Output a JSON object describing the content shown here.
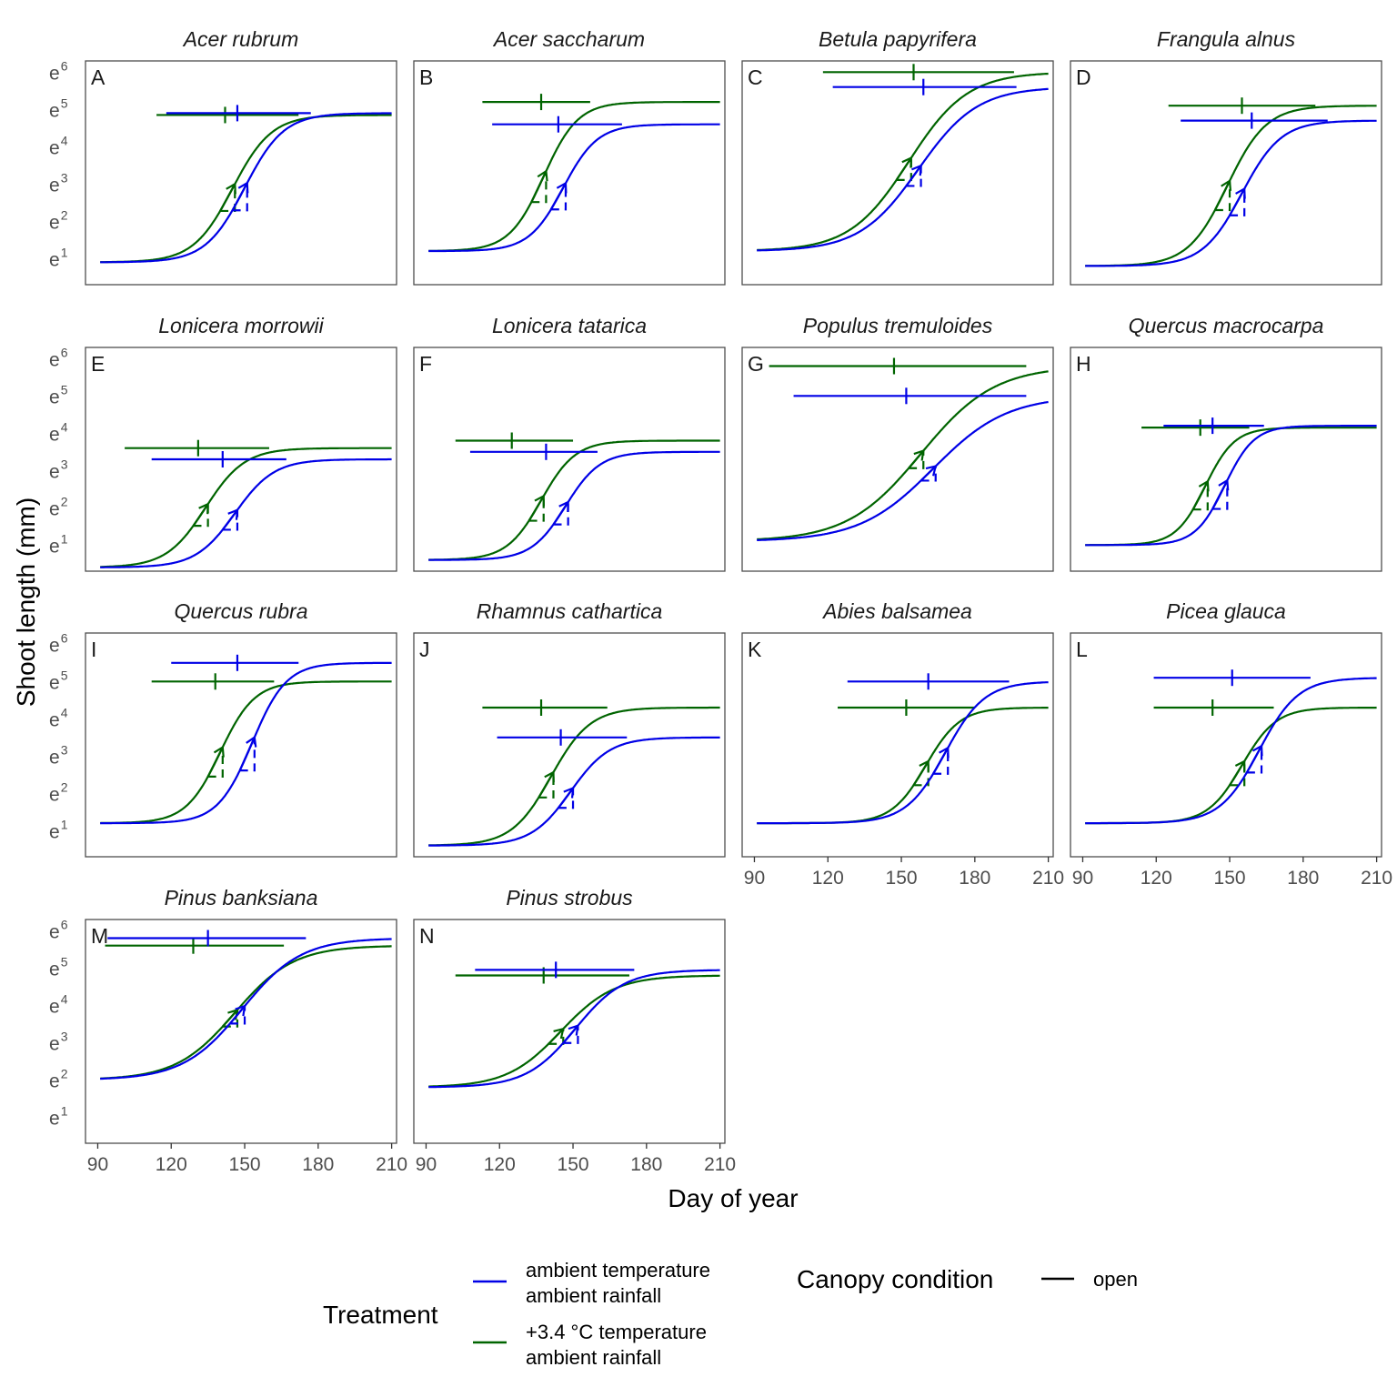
{
  "chart_data": {
    "type": "line",
    "ylabel": "Shoot length (mm)",
    "xlabel": "Day of year",
    "x_ticks": [
      90,
      120,
      150,
      180,
      210
    ],
    "x_range": [
      85,
      212
    ],
    "y_scale": "log (natural)",
    "y_ticks": [
      {
        "base": "e",
        "exp": "1"
      },
      {
        "base": "e",
        "exp": "2"
      },
      {
        "base": "e",
        "exp": "3"
      },
      {
        "base": "e",
        "exp": "4"
      },
      {
        "base": "e",
        "exp": "5"
      },
      {
        "base": "e",
        "exp": "6"
      }
    ],
    "y_range_ln": [
      0.3,
      6.3
    ],
    "colors": {
      "ambient": "#0000e6",
      "warmed": "#006400"
    },
    "legend": {
      "treatment_title": "Treatment",
      "ambient_label_1": "ambient temperature",
      "ambient_label_2": "ambient rainfall",
      "warmed_label_1": "+3.4 °C temperature",
      "warmed_label_2": "ambient rainfall",
      "canopy_title": "Canopy condition",
      "canopy_label": "open"
    },
    "panels": [
      {
        "letter": "A",
        "species": "Acer rubrum",
        "ambient": {
          "x_start": 91,
          "x_end": 210,
          "ln_y0": 0.9,
          "ln_y1": 4.9,
          "midpoint": 150,
          "scale": 8,
          "plateau_x": 147,
          "plateau_range": [
            118,
            177
          ]
        },
        "warmed": {
          "x_start": 91,
          "x_end": 210,
          "ln_y0": 0.9,
          "ln_y1": 4.85,
          "midpoint": 145,
          "scale": 8,
          "plateau_x": 142,
          "plateau_range": [
            114,
            172
          ]
        }
      },
      {
        "letter": "B",
        "species": "Acer saccharum",
        "ambient": {
          "x_start": 91,
          "x_end": 210,
          "ln_y0": 1.2,
          "ln_y1": 4.6,
          "midpoint": 146,
          "scale": 7,
          "plateau_x": 144,
          "plateau_range": [
            117,
            170
          ]
        },
        "warmed": {
          "x_start": 91,
          "x_end": 210,
          "ln_y0": 1.2,
          "ln_y1": 5.2,
          "midpoint": 138,
          "scale": 7,
          "plateau_x": 137,
          "plateau_range": [
            113,
            157
          ]
        }
      },
      {
        "letter": "C",
        "species": "Betula papyrifera",
        "ambient": {
          "x_start": 91,
          "x_end": 210,
          "ln_y0": 1.2,
          "ln_y1": 5.6,
          "midpoint": 157,
          "scale": 12,
          "plateau_x": 159,
          "plateau_range": [
            122,
            197
          ]
        },
        "warmed": {
          "x_start": 91,
          "x_end": 210,
          "ln_y0": 1.2,
          "ln_y1": 6.0,
          "midpoint": 153,
          "scale": 12,
          "plateau_x": 155,
          "plateau_range": [
            118,
            196
          ]
        }
      },
      {
        "letter": "D",
        "species": "Frangula alnus",
        "ambient": {
          "x_start": 91,
          "x_end": 210,
          "ln_y0": 0.8,
          "ln_y1": 4.7,
          "midpoint": 155,
          "scale": 8,
          "plateau_x": 159,
          "plateau_range": [
            130,
            190
          ]
        },
        "warmed": {
          "x_start": 91,
          "x_end": 210,
          "ln_y0": 0.8,
          "ln_y1": 5.1,
          "midpoint": 149,
          "scale": 8,
          "plateau_x": 155,
          "plateau_range": [
            125,
            185
          ]
        }
      },
      {
        "letter": "E",
        "species": "Lonicera morrowii",
        "ambient": {
          "x_start": 91,
          "x_end": 210,
          "ln_y0": 0.4,
          "ln_y1": 3.3,
          "midpoint": 146,
          "scale": 8,
          "plateau_x": 141,
          "plateau_range": [
            112,
            167
          ]
        },
        "warmed": {
          "x_start": 91,
          "x_end": 210,
          "ln_y0": 0.4,
          "ln_y1": 3.6,
          "midpoint": 134,
          "scale": 8,
          "plateau_x": 131,
          "plateau_range": [
            101,
            160
          ]
        }
      },
      {
        "letter": "F",
        "species": "Lonicera tatarica",
        "ambient": {
          "x_start": 91,
          "x_end": 210,
          "ln_y0": 0.6,
          "ln_y1": 3.5,
          "midpoint": 147,
          "scale": 7,
          "plateau_x": 139,
          "plateau_range": [
            108,
            160
          ]
        },
        "warmed": {
          "x_start": 91,
          "x_end": 210,
          "ln_y0": 0.6,
          "ln_y1": 3.8,
          "midpoint": 137,
          "scale": 7,
          "plateau_x": 125,
          "plateau_range": [
            102,
            150
          ]
        }
      },
      {
        "letter": "G",
        "species": "Populus tremuloides",
        "ambient": {
          "x_start": 91,
          "x_end": 210,
          "ln_y0": 1.1,
          "ln_y1": 5.0,
          "midpoint": 163,
          "scale": 15,
          "plateau_x": 152,
          "plateau_range": [
            106,
            201
          ]
        },
        "warmed": {
          "x_start": 91,
          "x_end": 210,
          "ln_y0": 1.1,
          "ln_y1": 5.8,
          "midpoint": 158,
          "scale": 15,
          "plateau_x": 147,
          "plateau_range": [
            96,
            201
          ]
        }
      },
      {
        "letter": "H",
        "species": "Quercus macrocarpa",
        "ambient": {
          "x_start": 91,
          "x_end": 210,
          "ln_y0": 1.0,
          "ln_y1": 4.2,
          "midpoint": 148,
          "scale": 6,
          "plateau_x": 143,
          "plateau_range": [
            123,
            164
          ]
        },
        "warmed": {
          "x_start": 91,
          "x_end": 210,
          "ln_y0": 1.0,
          "ln_y1": 4.15,
          "midpoint": 140,
          "scale": 6,
          "plateau_x": 138,
          "plateau_range": [
            114,
            158
          ]
        }
      },
      {
        "letter": "I",
        "species": "Quercus rubra",
        "ambient": {
          "x_start": 91,
          "x_end": 210,
          "ln_y0": 1.2,
          "ln_y1": 5.5,
          "midpoint": 153,
          "scale": 7,
          "plateau_x": 147,
          "plateau_range": [
            120,
            172
          ]
        },
        "warmed": {
          "x_start": 91,
          "x_end": 210,
          "ln_y0": 1.2,
          "ln_y1": 5.0,
          "midpoint": 140,
          "scale": 7,
          "plateau_x": 138,
          "plateau_range": [
            112,
            162
          ]
        }
      },
      {
        "letter": "J",
        "species": "Rhamnus cathartica",
        "ambient": {
          "x_start": 91,
          "x_end": 210,
          "ln_y0": 0.6,
          "ln_y1": 3.5,
          "midpoint": 149,
          "scale": 8,
          "plateau_x": 145,
          "plateau_range": [
            119,
            172
          ]
        },
        "warmed": {
          "x_start": 91,
          "x_end": 210,
          "ln_y0": 0.6,
          "ln_y1": 4.3,
          "midpoint": 141,
          "scale": 8,
          "plateau_x": 137,
          "plateau_range": [
            113,
            164
          ]
        }
      },
      {
        "letter": "K",
        "species": "Abies balsamea",
        "ambient": {
          "x_start": 91,
          "x_end": 210,
          "ln_y0": 1.2,
          "ln_y1": 5.0,
          "midpoint": 168,
          "scale": 8,
          "plateau_x": 161,
          "plateau_range": [
            128,
            194
          ]
        },
        "warmed": {
          "x_start": 91,
          "x_end": 210,
          "ln_y0": 1.2,
          "ln_y1": 4.3,
          "midpoint": 160,
          "scale": 7,
          "plateau_x": 152,
          "plateau_range": [
            124,
            180
          ]
        }
      },
      {
        "letter": "L",
        "species": "Picea glauca",
        "ambient": {
          "x_start": 91,
          "x_end": 210,
          "ln_y0": 1.2,
          "ln_y1": 5.1,
          "midpoint": 162,
          "scale": 8,
          "plateau_x": 151,
          "plateau_range": [
            119,
            183
          ]
        },
        "warmed": {
          "x_start": 91,
          "x_end": 210,
          "ln_y0": 1.2,
          "ln_y1": 4.3,
          "midpoint": 155,
          "scale": 7,
          "plateau_x": 143,
          "plateau_range": [
            119,
            168
          ]
        }
      },
      {
        "letter": "M",
        "species": "Pinus banksiana",
        "ambient": {
          "x_start": 91,
          "x_end": 210,
          "ln_y0": 2.0,
          "ln_y1": 5.8,
          "midpoint": 149,
          "scale": 12,
          "plateau_x": 135,
          "plateau_range": [
            94,
            175
          ]
        },
        "warmed": {
          "x_start": 91,
          "x_end": 210,
          "ln_y0": 2.0,
          "ln_y1": 5.6,
          "midpoint": 146,
          "scale": 12,
          "plateau_x": 129,
          "plateau_range": [
            93,
            166
          ]
        }
      },
      {
        "letter": "N",
        "species": "Pinus strobus",
        "ambient": {
          "x_start": 91,
          "x_end": 210,
          "ln_y0": 1.8,
          "ln_y1": 4.95,
          "midpoint": 151,
          "scale": 10,
          "plateau_x": 143,
          "plateau_range": [
            110,
            175
          ]
        },
        "warmed": {
          "x_start": 91,
          "x_end": 210,
          "ln_y0": 1.8,
          "ln_y1": 4.8,
          "midpoint": 145,
          "scale": 11,
          "plateau_x": 138,
          "plateau_range": [
            102,
            173
          ]
        }
      }
    ]
  }
}
